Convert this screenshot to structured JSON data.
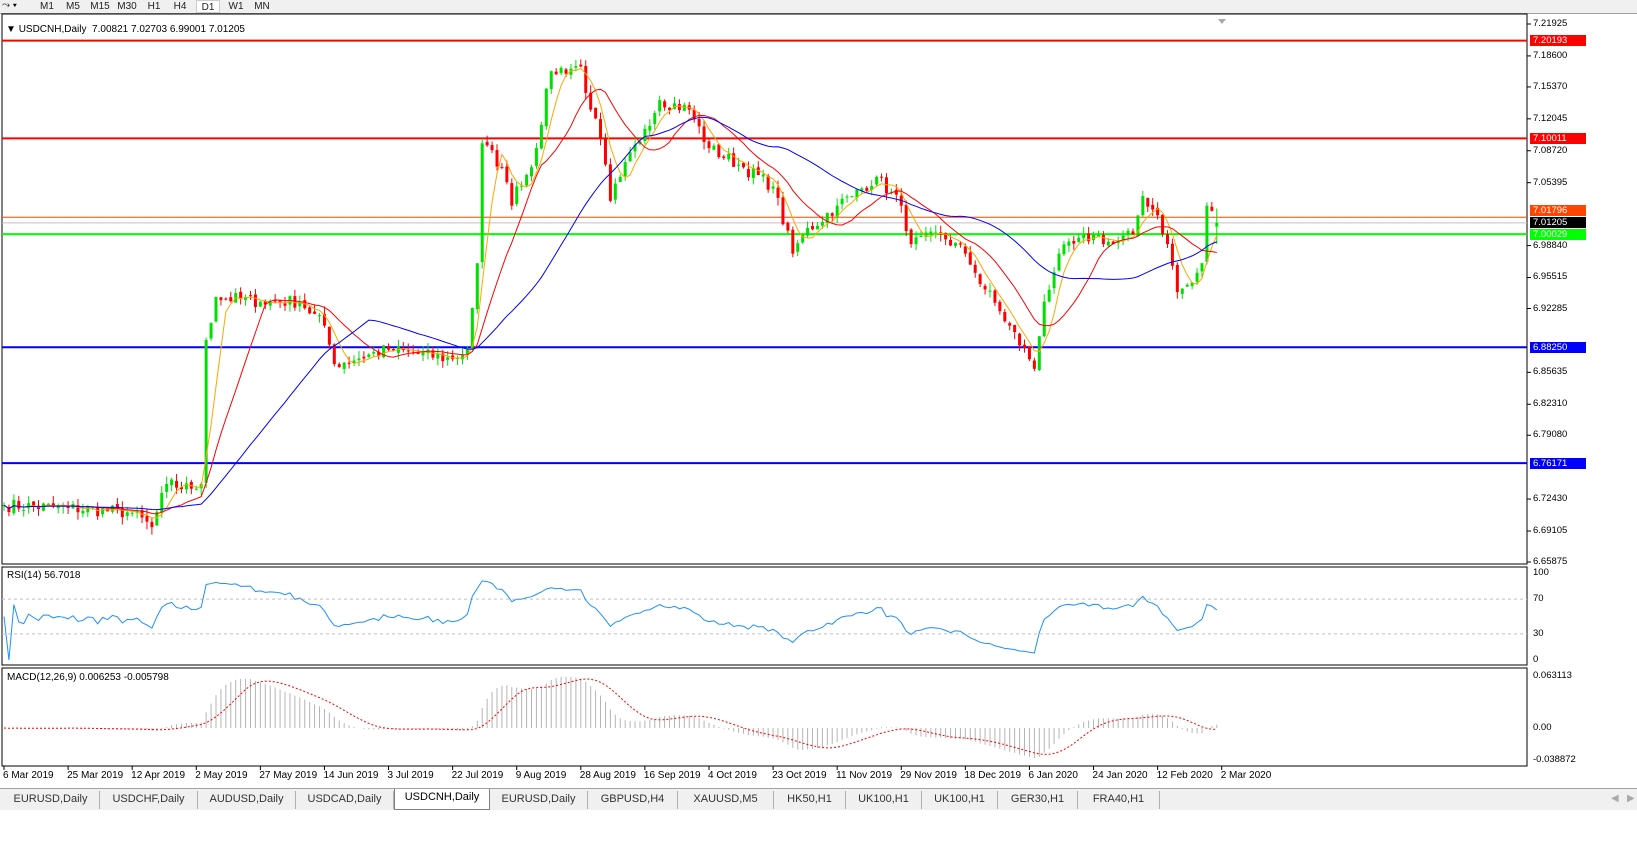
{
  "toolbar": {
    "timeframes": [
      "M1",
      "M5",
      "M15",
      "M30",
      "H1",
      "H4",
      "D1",
      "W1",
      "MN"
    ],
    "active": "D1"
  },
  "chart": {
    "symbol_title": "USDCNH,Daily",
    "ohlc": "7.00821 7.02703 6.99001 7.01205"
  },
  "colors": {
    "bull": "#00e000",
    "bear": "#ff0000",
    "ma_fast": "#ffa500",
    "ma_mid": "#ff0000",
    "ma_slow": "#0000ff",
    "rsi": "#1e90ff",
    "macd_hist": "#b4b4b4",
    "macd_signal": "#ff0000"
  },
  "price_axis": {
    "ticks": [
      "7.21925",
      "7.18600",
      "7.15370",
      "7.12045",
      "7.08720",
      "7.05395",
      "6.98840",
      "6.95515",
      "6.92285",
      "6.85635",
      "6.82310",
      "6.79080",
      "6.72430",
      "6.69105",
      "6.65875"
    ],
    "range": [
      6.65875,
      7.21925
    ]
  },
  "levels": [
    {
      "price": 7.20193,
      "label": "7.20193",
      "color": "#ff0000"
    },
    {
      "price": 7.10011,
      "label": "7.10011",
      "color": "#ff0000"
    },
    {
      "price": 7.01796,
      "label": "7.01796",
      "color": "#ff4500"
    },
    {
      "price": 7.01205,
      "label": "7.01205",
      "color": "#000000"
    },
    {
      "price": 7.00029,
      "label": "7.00029",
      "color": "#00ff00"
    },
    {
      "price": 6.8825,
      "label": "6.88250",
      "color": "#0000ff"
    },
    {
      "price": 6.76171,
      "label": "6.76171",
      "color": "#0000ff"
    }
  ],
  "rsi": {
    "title": "RSI(14) 56.7018",
    "ticks": [
      "100",
      "70",
      "30",
      "0"
    ]
  },
  "macd": {
    "title": "MACD(12,26,9) 0.006253 -0.005798",
    "ticks": [
      "0.063113",
      "0.00",
      "-0.038872"
    ]
  },
  "date_axis": [
    "6 Mar 2019",
    "25 Mar 2019",
    "12 Apr 2019",
    "2 May 2019",
    "27 May 2019",
    "14 Jun 2019",
    "3 Jul 2019",
    "22 Jul 2019",
    "9 Aug 2019",
    "28 Aug 2019",
    "16 Sep 2019",
    "4 Oct 2019",
    "23 Oct 2019",
    "11 Nov 2019",
    "29 Nov 2019",
    "18 Dec 2019",
    "6 Jan 2020",
    "24 Jan 2020",
    "12 Feb 2020",
    "2 Mar 2020"
  ],
  "chart_data": {
    "type": "candlestick",
    "bars": 247,
    "close_path": [
      [
        0,
        6.718
      ],
      [
        13,
        6.715
      ],
      [
        26,
        6.71
      ],
      [
        30,
        6.695
      ],
      [
        33,
        6.74
      ],
      [
        38,
        6.735
      ],
      [
        40,
        6.74
      ],
      [
        41,
        6.89
      ],
      [
        43,
        6.935
      ],
      [
        52,
        6.93
      ],
      [
        60,
        6.93
      ],
      [
        65,
        6.905
      ],
      [
        67,
        6.865
      ],
      [
        78,
        6.88
      ],
      [
        91,
        6.87
      ],
      [
        94,
        6.88
      ],
      [
        96,
        6.97
      ],
      [
        97,
        7.095
      ],
      [
        101,
        7.07
      ],
      [
        103,
        7.03
      ],
      [
        104,
        7.05
      ],
      [
        107,
        7.07
      ],
      [
        111,
        7.17
      ],
      [
        117,
        7.175
      ],
      [
        119,
        7.13
      ],
      [
        121,
        7.1
      ],
      [
        123,
        7.035
      ],
      [
        125,
        7.06
      ],
      [
        130,
        7.11
      ],
      [
        133,
        7.14
      ],
      [
        139,
        7.13
      ],
      [
        143,
        7.09
      ],
      [
        150,
        7.07
      ],
      [
        156,
        7.05
      ],
      [
        160,
        6.98
      ],
      [
        162,
        7.0
      ],
      [
        169,
        7.03
      ],
      [
        172,
        7.04
      ],
      [
        177,
        7.06
      ],
      [
        182,
        7.03
      ],
      [
        184,
        6.99
      ],
      [
        190,
        7.0
      ],
      [
        195,
        6.98
      ],
      [
        197,
        6.96
      ],
      [
        202,
        6.92
      ],
      [
        208,
        6.87
      ],
      [
        209,
        6.86
      ],
      [
        211,
        6.93
      ],
      [
        214,
        6.98
      ],
      [
        221,
        7.0
      ],
      [
        225,
        6.99
      ],
      [
        229,
        7.0
      ],
      [
        231,
        7.04
      ],
      [
        234,
        7.02
      ],
      [
        236,
        6.99
      ],
      [
        238,
        6.94
      ],
      [
        241,
        6.95
      ],
      [
        243,
        6.97
      ],
      [
        244,
        7.03
      ],
      [
        246,
        7.012
      ]
    ],
    "last": {
      "open": 7.00821,
      "high": 7.02703,
      "low": 6.99001,
      "close": 7.01205
    }
  },
  "tabs": [
    "EURUSD,Daily",
    "USDCHF,Daily",
    "AUDUSD,Daily",
    "USDCAD,Daily",
    "USDCNH,Daily",
    "EURUSD,Daily",
    "GBPUSD,H4",
    "XAUUSD,M5",
    "HK50,H1",
    "UK100,H1",
    "UK100,H1",
    "GER30,H1",
    "FRA40,H1"
  ],
  "active_tab": "USDCNH,Daily"
}
